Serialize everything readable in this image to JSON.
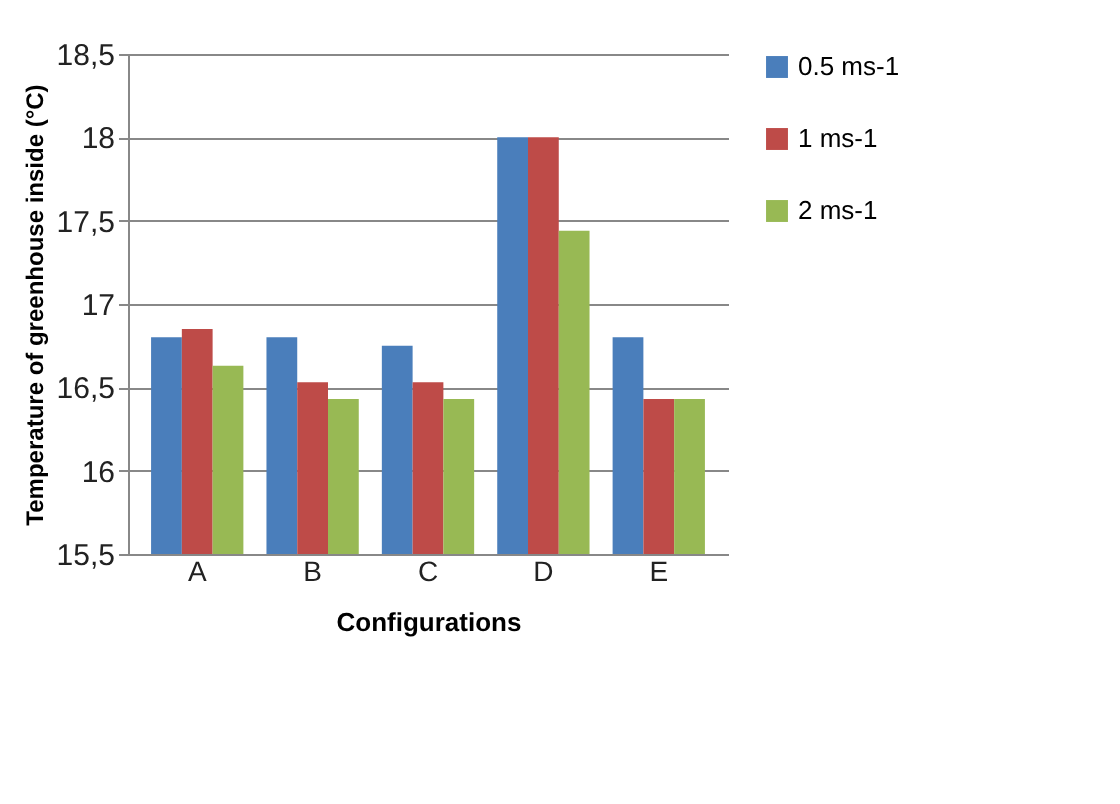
{
  "chart_data": {
    "type": "bar",
    "xlabel": "Configurations",
    "ylabel": "Temperature of greenhouse inside (°C)",
    "categories": [
      "A",
      "B",
      "C",
      "D",
      "E"
    ],
    "series": [
      {
        "name": "0.5 ms-1",
        "color": "#4a7ebb",
        "values": [
          16.8,
          16.8,
          16.75,
          18,
          16.8
        ]
      },
      {
        "name": "1 ms-1",
        "color": "#be4b48",
        "values": [
          16.85,
          16.53,
          16.53,
          18,
          16.43
        ]
      },
      {
        "name": "2 ms-1",
        "color": "#98b954",
        "values": [
          16.63,
          16.43,
          16.43,
          17.44,
          16.43
        ]
      }
    ],
    "ylim": [
      15.5,
      18.5
    ],
    "yticks": [
      {
        "value": 15.5,
        "label": "15,5"
      },
      16,
      {
        "value": 16.5,
        "label": "16,5"
      },
      17,
      {
        "value": 17.5,
        "label": "17,5"
      },
      18,
      {
        "value": 18.5,
        "label": "18,5"
      }
    ],
    "grid": "y",
    "legend": "right"
  }
}
